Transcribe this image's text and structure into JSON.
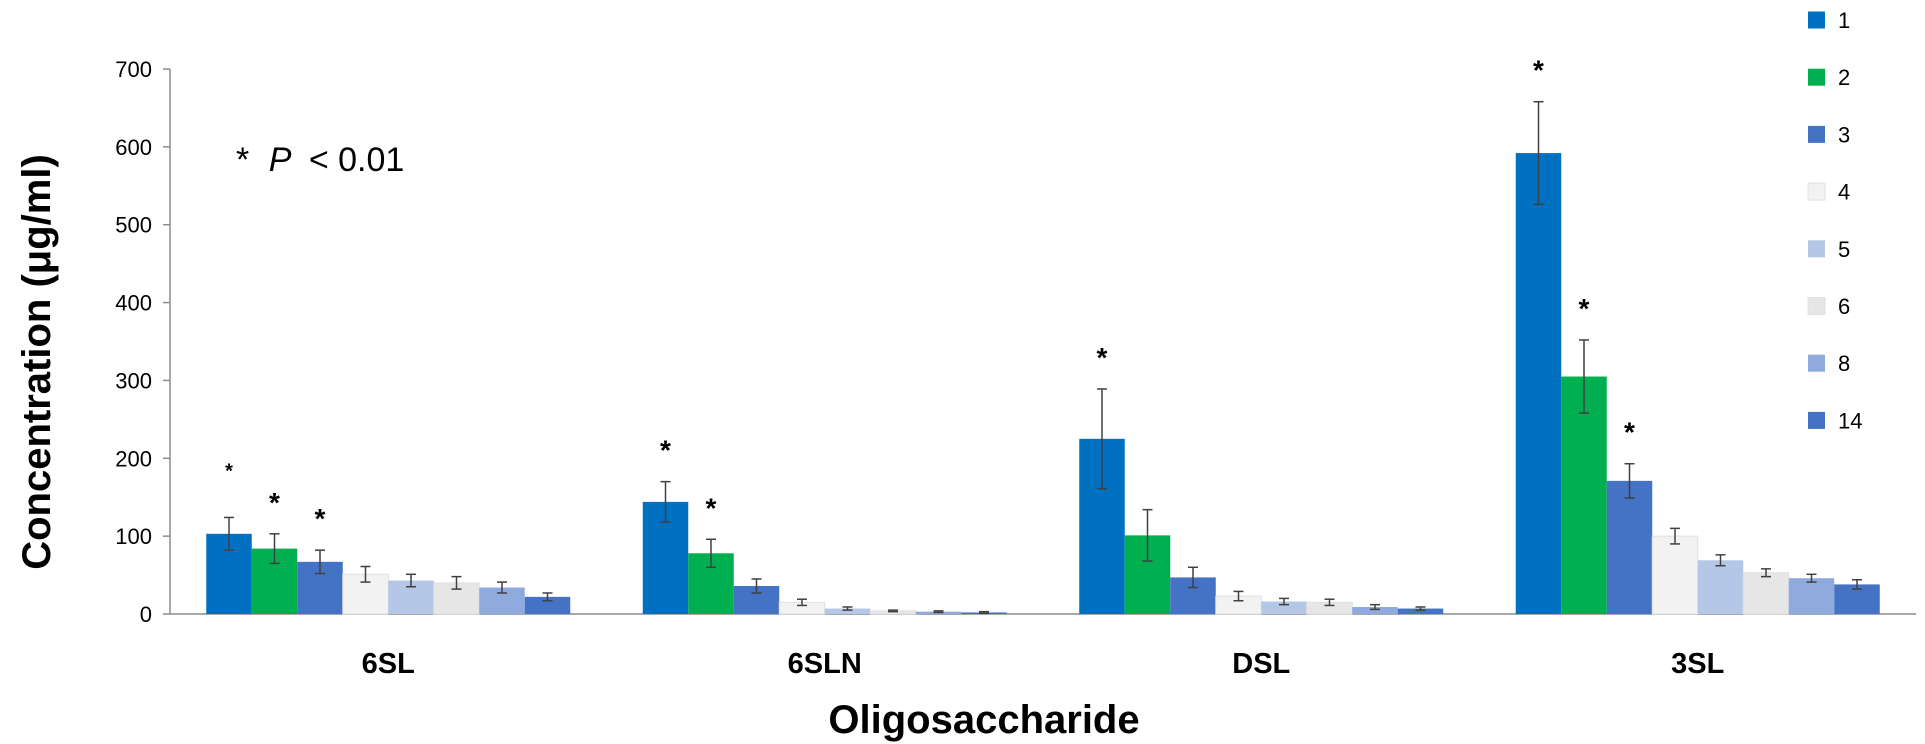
{
  "chart_data": {
    "type": "bar",
    "title": "",
    "xlabel": "Oligosaccharide",
    "ylabel": "Concentration (μg/ml)",
    "ylim": [
      0,
      700
    ],
    "yticks": [
      0,
      100,
      200,
      300,
      400,
      500,
      600,
      700
    ],
    "grid": false,
    "legend_position": "right",
    "annotation": {
      "star": "*",
      "p_symbol": "P",
      "p_rest": "< 0.01"
    },
    "significance_marker": "*",
    "categories": [
      "6SL",
      "6SLN",
      "DSL",
      "3SL"
    ],
    "series": [
      {
        "name": "1",
        "color": "#0070C0",
        "values": [
          103,
          144,
          225,
          592
        ],
        "errors": [
          21,
          26,
          64,
          66
        ],
        "significant": [
          true,
          true,
          true,
          true
        ]
      },
      {
        "name": "2",
        "color": "#00B050",
        "values": [
          84,
          78,
          101,
          305
        ],
        "errors": [
          19,
          18,
          33,
          47
        ],
        "significant": [
          true,
          true,
          false,
          true
        ]
      },
      {
        "name": "3",
        "color": "#4472C4",
        "values": [
          67,
          36,
          47,
          171
        ],
        "errors": [
          15,
          9,
          13,
          22
        ],
        "significant": [
          true,
          false,
          false,
          true
        ]
      },
      {
        "name": "4",
        "color": "#F2F2F2",
        "values": [
          51,
          15,
          23,
          100
        ],
        "errors": [
          10,
          4,
          6,
          10
        ],
        "significant": [
          false,
          false,
          false,
          false
        ]
      },
      {
        "name": "5",
        "color": "#B4C7E7",
        "values": [
          43,
          7,
          16,
          69
        ],
        "errors": [
          8,
          2,
          4,
          7
        ],
        "significant": [
          false,
          false,
          false,
          false
        ]
      },
      {
        "name": "6",
        "color": "#E7E6E6",
        "values": [
          40,
          4,
          15,
          53
        ],
        "errors": [
          8,
          1,
          4,
          5
        ],
        "significant": [
          false,
          false,
          false,
          false
        ]
      },
      {
        "name": "8",
        "color": "#8FAADC",
        "values": [
          34,
          3,
          9,
          46
        ],
        "errors": [
          7,
          1,
          3,
          5
        ],
        "significant": [
          false,
          false,
          false,
          false
        ]
      },
      {
        "name": "14",
        "color": "#4472C4",
        "values": [
          22,
          2,
          7,
          38
        ],
        "errors": [
          5,
          1,
          2,
          6
        ],
        "significant": [
          false,
          false,
          false,
          false
        ]
      }
    ]
  }
}
